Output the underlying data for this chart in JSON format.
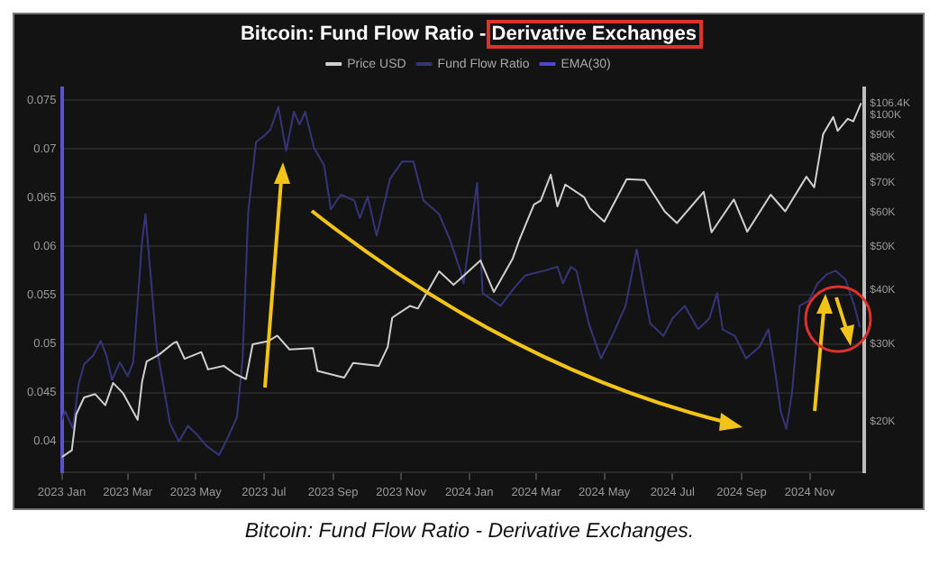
{
  "chart_data": {
    "type": "line",
    "title": "Bitcoin: Fund Flow Ratio - Derivative Exchanges",
    "annotations": [
      "Bitcoin: Fund Flow Ratio - Derivative Exchanges."
    ],
    "legend": "top",
    "grid": "y",
    "log": "y2",
    "xlim": [
      "2023-01-01",
      "2024-12-20"
    ],
    "xticks": [
      {
        "value": "2023-01-01",
        "label": "2023 Jan"
      },
      {
        "value": "2023-03-01",
        "label": "2023 Mar"
      },
      {
        "value": "2023-05-01",
        "label": "2023 May"
      },
      {
        "value": "2023-07-01",
        "label": "2023 Jul"
      },
      {
        "value": "2023-09-01",
        "label": "2023 Sep"
      },
      {
        "value": "2023-11-01",
        "label": "2023 Nov"
      },
      {
        "value": "2024-01-01",
        "label": "2024 Jan"
      },
      {
        "value": "2024-03-01",
        "label": "2024 Mar"
      },
      {
        "value": "2024-05-01",
        "label": "2024 May"
      },
      {
        "value": "2024-07-01",
        "label": "2024 Jul"
      },
      {
        "value": "2024-09-01",
        "label": "2024 Sep"
      },
      {
        "value": "2024-11-01",
        "label": "2024 Nov"
      }
    ],
    "ylim": [
      0.0368,
      0.0762
    ],
    "yticks": [
      0.04,
      0.045,
      0.05,
      0.055,
      0.06,
      0.065,
      0.07,
      0.075
    ],
    "y2lim": [
      15300,
      115000
    ],
    "y2ticks": [
      {
        "value": 20000,
        "label": "$20K"
      },
      {
        "value": 30000,
        "label": "$30K"
      },
      {
        "value": 40000,
        "label": "$40K"
      },
      {
        "value": 50000,
        "label": "$50K"
      },
      {
        "value": 60000,
        "label": "$60K"
      },
      {
        "value": 70000,
        "label": "$70K"
      },
      {
        "value": 80000,
        "label": "$80K"
      },
      {
        "value": 90000,
        "label": "$90K"
      },
      {
        "value": 100000,
        "label": "$100K"
      },
      {
        "value": 106400,
        "label": "$106.4K"
      }
    ],
    "series": [
      {
        "name": "Price USD",
        "color": "#d0d0d0",
        "axis": "y2",
        "x": [
          "2023-01-01",
          "2023-01-10",
          "2023-01-14",
          "2023-01-21",
          "2023-01-31",
          "2023-02-09",
          "2023-02-16",
          "2023-02-25",
          "2023-03-10",
          "2023-03-14",
          "2023-03-18",
          "2023-03-29",
          "2023-04-11",
          "2023-04-14",
          "2023-04-21",
          "2023-05-06",
          "2023-05-12",
          "2023-05-26",
          "2023-06-05",
          "2023-06-15",
          "2023-06-21",
          "2023-07-05",
          "2023-07-13",
          "2023-07-24",
          "2023-08-14",
          "2023-08-18",
          "2023-09-11",
          "2023-09-19",
          "2023-10-12",
          "2023-10-20",
          "2023-10-24",
          "2023-11-09",
          "2023-11-16",
          "2023-12-05",
          "2023-12-18",
          "2024-01-11",
          "2024-01-23",
          "2024-02-09",
          "2024-02-15",
          "2024-02-28",
          "2024-03-05",
          "2024-03-14",
          "2024-03-20",
          "2024-03-27",
          "2024-04-13",
          "2024-04-18",
          "2024-05-01",
          "2024-05-21",
          "2024-06-06",
          "2024-06-24",
          "2024-07-05",
          "2024-07-29",
          "2024-08-05",
          "2024-08-25",
          "2024-09-06",
          "2024-09-27",
          "2024-10-10",
          "2024-10-29",
          "2024-11-05",
          "2024-11-13",
          "2024-11-22",
          "2024-11-26",
          "2024-12-05",
          "2024-12-10",
          "2024-12-17"
        ],
        "values": [
          16600,
          17200,
          20800,
          22700,
          23100,
          21800,
          24500,
          23200,
          20200,
          24700,
          27400,
          28400,
          30200,
          30400,
          27800,
          28800,
          26300,
          26800,
          25700,
          25000,
          30000,
          30500,
          31400,
          29200,
          29400,
          26100,
          25200,
          27200,
          26800,
          29600,
          34500,
          36700,
          36200,
          44000,
          41000,
          46600,
          39500,
          47100,
          52000,
          62500,
          63800,
          73100,
          61900,
          69400,
          64900,
          61300,
          57100,
          71400,
          71100,
          60300,
          56700,
          66800,
          54000,
          64200,
          54200,
          65800,
          60300,
          72300,
          68400,
          90500,
          98900,
          92000,
          98000,
          96700,
          106400
        ]
      },
      {
        "name": "Fund Flow Ratio",
        "color": "#36357a",
        "axis": "y",
        "x": [
          "2023-01-01",
          "2023-01-04",
          "2023-01-11",
          "2023-01-16",
          "2023-01-21",
          "2023-01-29",
          "2023-02-05",
          "2023-02-10",
          "2023-02-15",
          "2023-02-22",
          "2023-03-01",
          "2023-03-06",
          "2023-03-14",
          "2023-03-17",
          "2023-03-27",
          "2023-04-08",
          "2023-04-16",
          "2023-04-24",
          "2023-05-02",
          "2023-05-11",
          "2023-05-22",
          "2023-05-31",
          "2023-06-07",
          "2023-06-12",
          "2023-06-17",
          "2023-06-24",
          "2023-07-02",
          "2023-07-07",
          "2023-07-14",
          "2023-07-21",
          "2023-07-28",
          "2023-08-02",
          "2023-08-07",
          "2023-08-15",
          "2023-08-24",
          "2023-08-30",
          "2023-09-08",
          "2023-09-20",
          "2023-09-25",
          "2023-10-02",
          "2023-10-10",
          "2023-10-22",
          "2023-11-02",
          "2023-11-12",
          "2023-11-21",
          "2023-12-05",
          "2023-12-15",
          "2023-12-24",
          "2023-12-27",
          "2024-01-08",
          "2024-01-13",
          "2024-01-29",
          "2024-02-10",
          "2024-02-20",
          "2024-03-08",
          "2024-03-20",
          "2024-03-25",
          "2024-04-01",
          "2024-04-06",
          "2024-04-17",
          "2024-04-28",
          "2024-05-08",
          "2024-05-20",
          "2024-05-30",
          "2024-06-11",
          "2024-06-23",
          "2024-07-01",
          "2024-07-12",
          "2024-07-24",
          "2024-08-03",
          "2024-08-10",
          "2024-08-15",
          "2024-08-26",
          "2024-09-05",
          "2024-09-17",
          "2024-09-25",
          "2024-09-30",
          "2024-10-06",
          "2024-10-11",
          "2024-10-16",
          "2024-10-23",
          "2024-10-31",
          "2024-11-08",
          "2024-11-16",
          "2024-11-24",
          "2024-12-03",
          "2024-12-11",
          "2024-12-16"
        ],
        "values": [
          0.0422,
          0.0431,
          0.0413,
          0.0458,
          0.0479,
          0.0488,
          0.0503,
          0.0488,
          0.0463,
          0.0481,
          0.0467,
          0.0481,
          0.0606,
          0.0633,
          0.0497,
          0.0418,
          0.04,
          0.0416,
          0.0407,
          0.0395,
          0.0386,
          0.0407,
          0.0425,
          0.0485,
          0.0635,
          0.0707,
          0.0714,
          0.072,
          0.0743,
          0.0698,
          0.0738,
          0.0725,
          0.0738,
          0.0701,
          0.0683,
          0.0638,
          0.0653,
          0.0647,
          0.0629,
          0.0651,
          0.0611,
          0.0669,
          0.0687,
          0.0687,
          0.0647,
          0.0633,
          0.0606,
          0.0575,
          0.0562,
          0.0665,
          0.0552,
          0.0539,
          0.0557,
          0.057,
          0.0575,
          0.0579,
          0.0562,
          0.0579,
          0.0575,
          0.0521,
          0.0485,
          0.0508,
          0.0539,
          0.0597,
          0.0521,
          0.0508,
          0.0526,
          0.0539,
          0.0515,
          0.0526,
          0.0552,
          0.0515,
          0.0508,
          0.0485,
          0.0497,
          0.0515,
          0.0479,
          0.0431,
          0.0413,
          0.0449,
          0.0539,
          0.0544,
          0.0562,
          0.0571,
          0.0575,
          0.0566,
          0.0539,
          0.0517
        ]
      },
      {
        "name": "EMA(30)",
        "color": "#4f46c8",
        "axis": "y"
      }
    ]
  }
}
